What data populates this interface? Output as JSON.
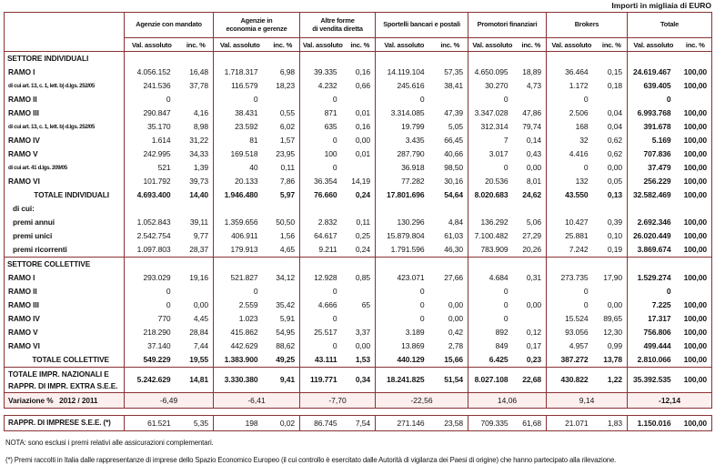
{
  "meta": {
    "units_note": "Importi in migliaia di EURO"
  },
  "colors": {
    "border": "#8a3233",
    "variation_bg": "#fdefee"
  },
  "header": {
    "channels": [
      "Agenzie con mandato",
      "Agenzie in\neconomia e gerenze",
      "Altre forme\ndi vendita diretta",
      "Sportelli bancari e postali",
      "Promotori finanziari",
      "Brokers",
      "Totale"
    ],
    "val_label": "Val. assoluto",
    "inc_label": "inc. %"
  },
  "table": {
    "rows": [
      {
        "label": "SETTORE INDIVIDUALI",
        "type": "section",
        "cells": [
          "",
          "",
          "",
          "",
          "",
          "",
          "",
          "",
          "",
          "",
          "",
          "",
          "",
          ""
        ]
      },
      {
        "label": "RAMO I",
        "type": "data",
        "cells": [
          "4.056.152",
          "16,48",
          "1.718.317",
          "6,98",
          "39.335",
          "0,16",
          "14.119.104",
          "57,35",
          "4.650.095",
          "18,89",
          "36.464",
          "0,15",
          "24.619.467",
          "100,00"
        ]
      },
      {
        "label": "di cui art. 13, c. 1, lett. b) d.lgs. 252/05",
        "type": "subnote",
        "cells": [
          "241.536",
          "37,78",
          "116.579",
          "18,23",
          "4.232",
          "0,66",
          "245.616",
          "38,41",
          "30.270",
          "4,73",
          "1.172",
          "0,18",
          "639.405",
          "100,00"
        ]
      },
      {
        "label": "RAMO II",
        "type": "data",
        "cells": [
          "0",
          "",
          "0",
          "",
          "0",
          "",
          "0",
          "",
          "0",
          "",
          "0",
          "",
          "0",
          ""
        ]
      },
      {
        "label": "RAMO III",
        "type": "data",
        "cells": [
          "290.847",
          "4,16",
          "38.431",
          "0,55",
          "871",
          "0,01",
          "3.314.085",
          "47,39",
          "3.347.028",
          "47,86",
          "2.506",
          "0,04",
          "6.993.768",
          "100,00"
        ]
      },
      {
        "label": "di cui art. 13, c. 1, lett. b) d.lgs. 252/05",
        "type": "subnote",
        "cells": [
          "35.170",
          "8,98",
          "23.592",
          "6,02",
          "635",
          "0,16",
          "19.799",
          "5,05",
          "312.314",
          "79,74",
          "168",
          "0,04",
          "391.678",
          "100,00"
        ]
      },
      {
        "label": "RAMO IV",
        "type": "data",
        "cells": [
          "1.614",
          "31,22",
          "81",
          "1,57",
          "0",
          "0,00",
          "3.435",
          "66,45",
          "7",
          "0,14",
          "32",
          "0,62",
          "5.169",
          "100,00"
        ]
      },
      {
        "label": "RAMO V",
        "type": "data",
        "cells": [
          "242.995",
          "34,33",
          "169.518",
          "23,95",
          "100",
          "0,01",
          "287.790",
          "40,66",
          "3.017",
          "0,43",
          "4.416",
          "0,62",
          "707.836",
          "100,00"
        ]
      },
      {
        "label": "di cui art. 41 d.lgs. 209/05",
        "type": "subnote",
        "cells": [
          "521",
          "1,39",
          "40",
          "0,11",
          "0",
          "",
          "36.918",
          "98,50",
          "0",
          "0,00",
          "0",
          "0,00",
          "37.479",
          "100,00"
        ]
      },
      {
        "label": "RAMO VI",
        "type": "data",
        "cells": [
          "101.792",
          "39,73",
          "20.133",
          "7,86",
          "36.354",
          "14,19",
          "77.282",
          "30,16",
          "20.536",
          "8,01",
          "132",
          "0,05",
          "256.229",
          "100,00"
        ]
      },
      {
        "label": "TOTALE INDIVIDUALI",
        "type": "total",
        "cells": [
          "4.693.400",
          "14,40",
          "1.946.480",
          "5,97",
          "76.660",
          "0,24",
          "17.801.696",
          "54,64",
          "8.020.683",
          "24,62",
          "43.550",
          "0,13",
          "32.582.469",
          "100,00"
        ]
      },
      {
        "label": "di cui:",
        "type": "subhead",
        "cells": [
          "",
          "",
          "",
          "",
          "",
          "",
          "",
          "",
          "",
          "",
          "",
          "",
          "",
          ""
        ]
      },
      {
        "label": "premi annui",
        "type": "data2",
        "cells": [
          "1.052.843",
          "39,11",
          "1.359.656",
          "50,50",
          "2.832",
          "0,11",
          "130.296",
          "4,84",
          "136.292",
          "5,06",
          "10.427",
          "0,39",
          "2.692.346",
          "100,00"
        ]
      },
      {
        "label": "premi unici",
        "type": "data2",
        "cells": [
          "2.542.754",
          "9,77",
          "406.911",
          "1,56",
          "64.617",
          "0,25",
          "15.879.804",
          "61,03",
          "7.100.482",
          "27,29",
          "25.881",
          "0,10",
          "26.020.449",
          "100,00"
        ]
      },
      {
        "label": "premi ricorrenti",
        "type": "data2",
        "cells": [
          "1.097.803",
          "28,37",
          "179.913",
          "4,65",
          "9.211",
          "0,24",
          "1.791.596",
          "46,30",
          "783.909",
          "20,26",
          "7.242",
          "0,19",
          "3.869.674",
          "100,00"
        ]
      },
      {
        "label": "SETTORE COLLETTIVE",
        "type": "section",
        "sep": true,
        "cells": [
          "",
          "",
          "",
          "",
          "",
          "",
          "",
          "",
          "",
          "",
          "",
          "",
          "",
          ""
        ]
      },
      {
        "label": "RAMO I",
        "type": "data",
        "cells": [
          "293.029",
          "19,16",
          "521.827",
          "34,12",
          "12.928",
          "0,85",
          "423.071",
          "27,66",
          "4.684",
          "0,31",
          "273.735",
          "17,90",
          "1.529.274",
          "100,00"
        ]
      },
      {
        "label": "RAMO II",
        "type": "data",
        "cells": [
          "0",
          "",
          "0",
          "",
          "0",
          "",
          "0",
          "",
          "0",
          "",
          "0",
          "",
          "0",
          ""
        ]
      },
      {
        "label": "RAMO III",
        "type": "data",
        "cells": [
          "0",
          "0,00",
          "2.559",
          "35,42",
          "4.666",
          "65",
          "0",
          "0,00",
          "0",
          "0,00",
          "0",
          "0,00",
          "7.225",
          "100,00"
        ]
      },
      {
        "label": "RAMO IV",
        "type": "data",
        "cells": [
          "770",
          "4,45",
          "1.023",
          "5,91",
          "0",
          "",
          "0",
          "0,00",
          "0",
          "",
          "15.524",
          "89,65",
          "17.317",
          "100,00"
        ]
      },
      {
        "label": "RAMO V",
        "type": "data",
        "cells": [
          "218.290",
          "28,84",
          "415.862",
          "54,95",
          "25.517",
          "3,37",
          "3.189",
          "0,42",
          "892",
          "0,12",
          "93.056",
          "12,30",
          "756.806",
          "100,00"
        ]
      },
      {
        "label": "RAMO VI",
        "type": "data",
        "cells": [
          "37.140",
          "7,44",
          "442.629",
          "88,62",
          "0",
          "0,00",
          "13.869",
          "2,78",
          "849",
          "0,17",
          "4.957",
          "0,99",
          "499.444",
          "100,00"
        ]
      },
      {
        "label": "TOTALE COLLETTIVE",
        "type": "total",
        "cells": [
          "549.229",
          "19,55",
          "1.383.900",
          "49,25",
          "43.111",
          "1,53",
          "440.129",
          "15,66",
          "6.425",
          "0,23",
          "387.272",
          "13,78",
          "2.810.066",
          "100,00"
        ]
      },
      {
        "label": "TOTALE IMPR. NAZIONALI E\nRAPPR. DI IMPR. EXTRA S.E.E.",
        "type": "grandtotal",
        "cells": [
          "5.242.629",
          "14,81",
          "3.330.380",
          "9,41",
          "119.771",
          "0,34",
          "18.241.825",
          "51,54",
          "8.027.108",
          "22,68",
          "430.822",
          "1,22",
          "35.392.535",
          "100,00"
        ]
      }
    ],
    "variation": {
      "label": "Variazione %   2012 / 2011",
      "values": [
        "-6,49",
        "-6,41",
        "-7,70",
        "-22,56",
        "14,06",
        "9,14",
        "-12,14"
      ]
    }
  },
  "rappr": {
    "label": "RAPPR. DI IMPRESE S.E.E. (*)",
    "cells": [
      "61.521",
      "5,35",
      "198",
      "0,02",
      "86.745",
      "7,54",
      "271.146",
      "23,58",
      "709.335",
      "61,68",
      "21.071",
      "1,83",
      "1.150.016",
      "100,00"
    ]
  },
  "footnotes": {
    "nota": "NOTA:  sono esclusi i premi relativi alle assicurazioni complementari.",
    "star": "(*) Premi raccolti in Italia dalle rappresentanze di imprese dello Spazio Economico Europeo (il cui controllo è esercitato dalle Autorità di vigilanza dei Paesi di origine) che hanno partecipato alla rilevazione."
  }
}
